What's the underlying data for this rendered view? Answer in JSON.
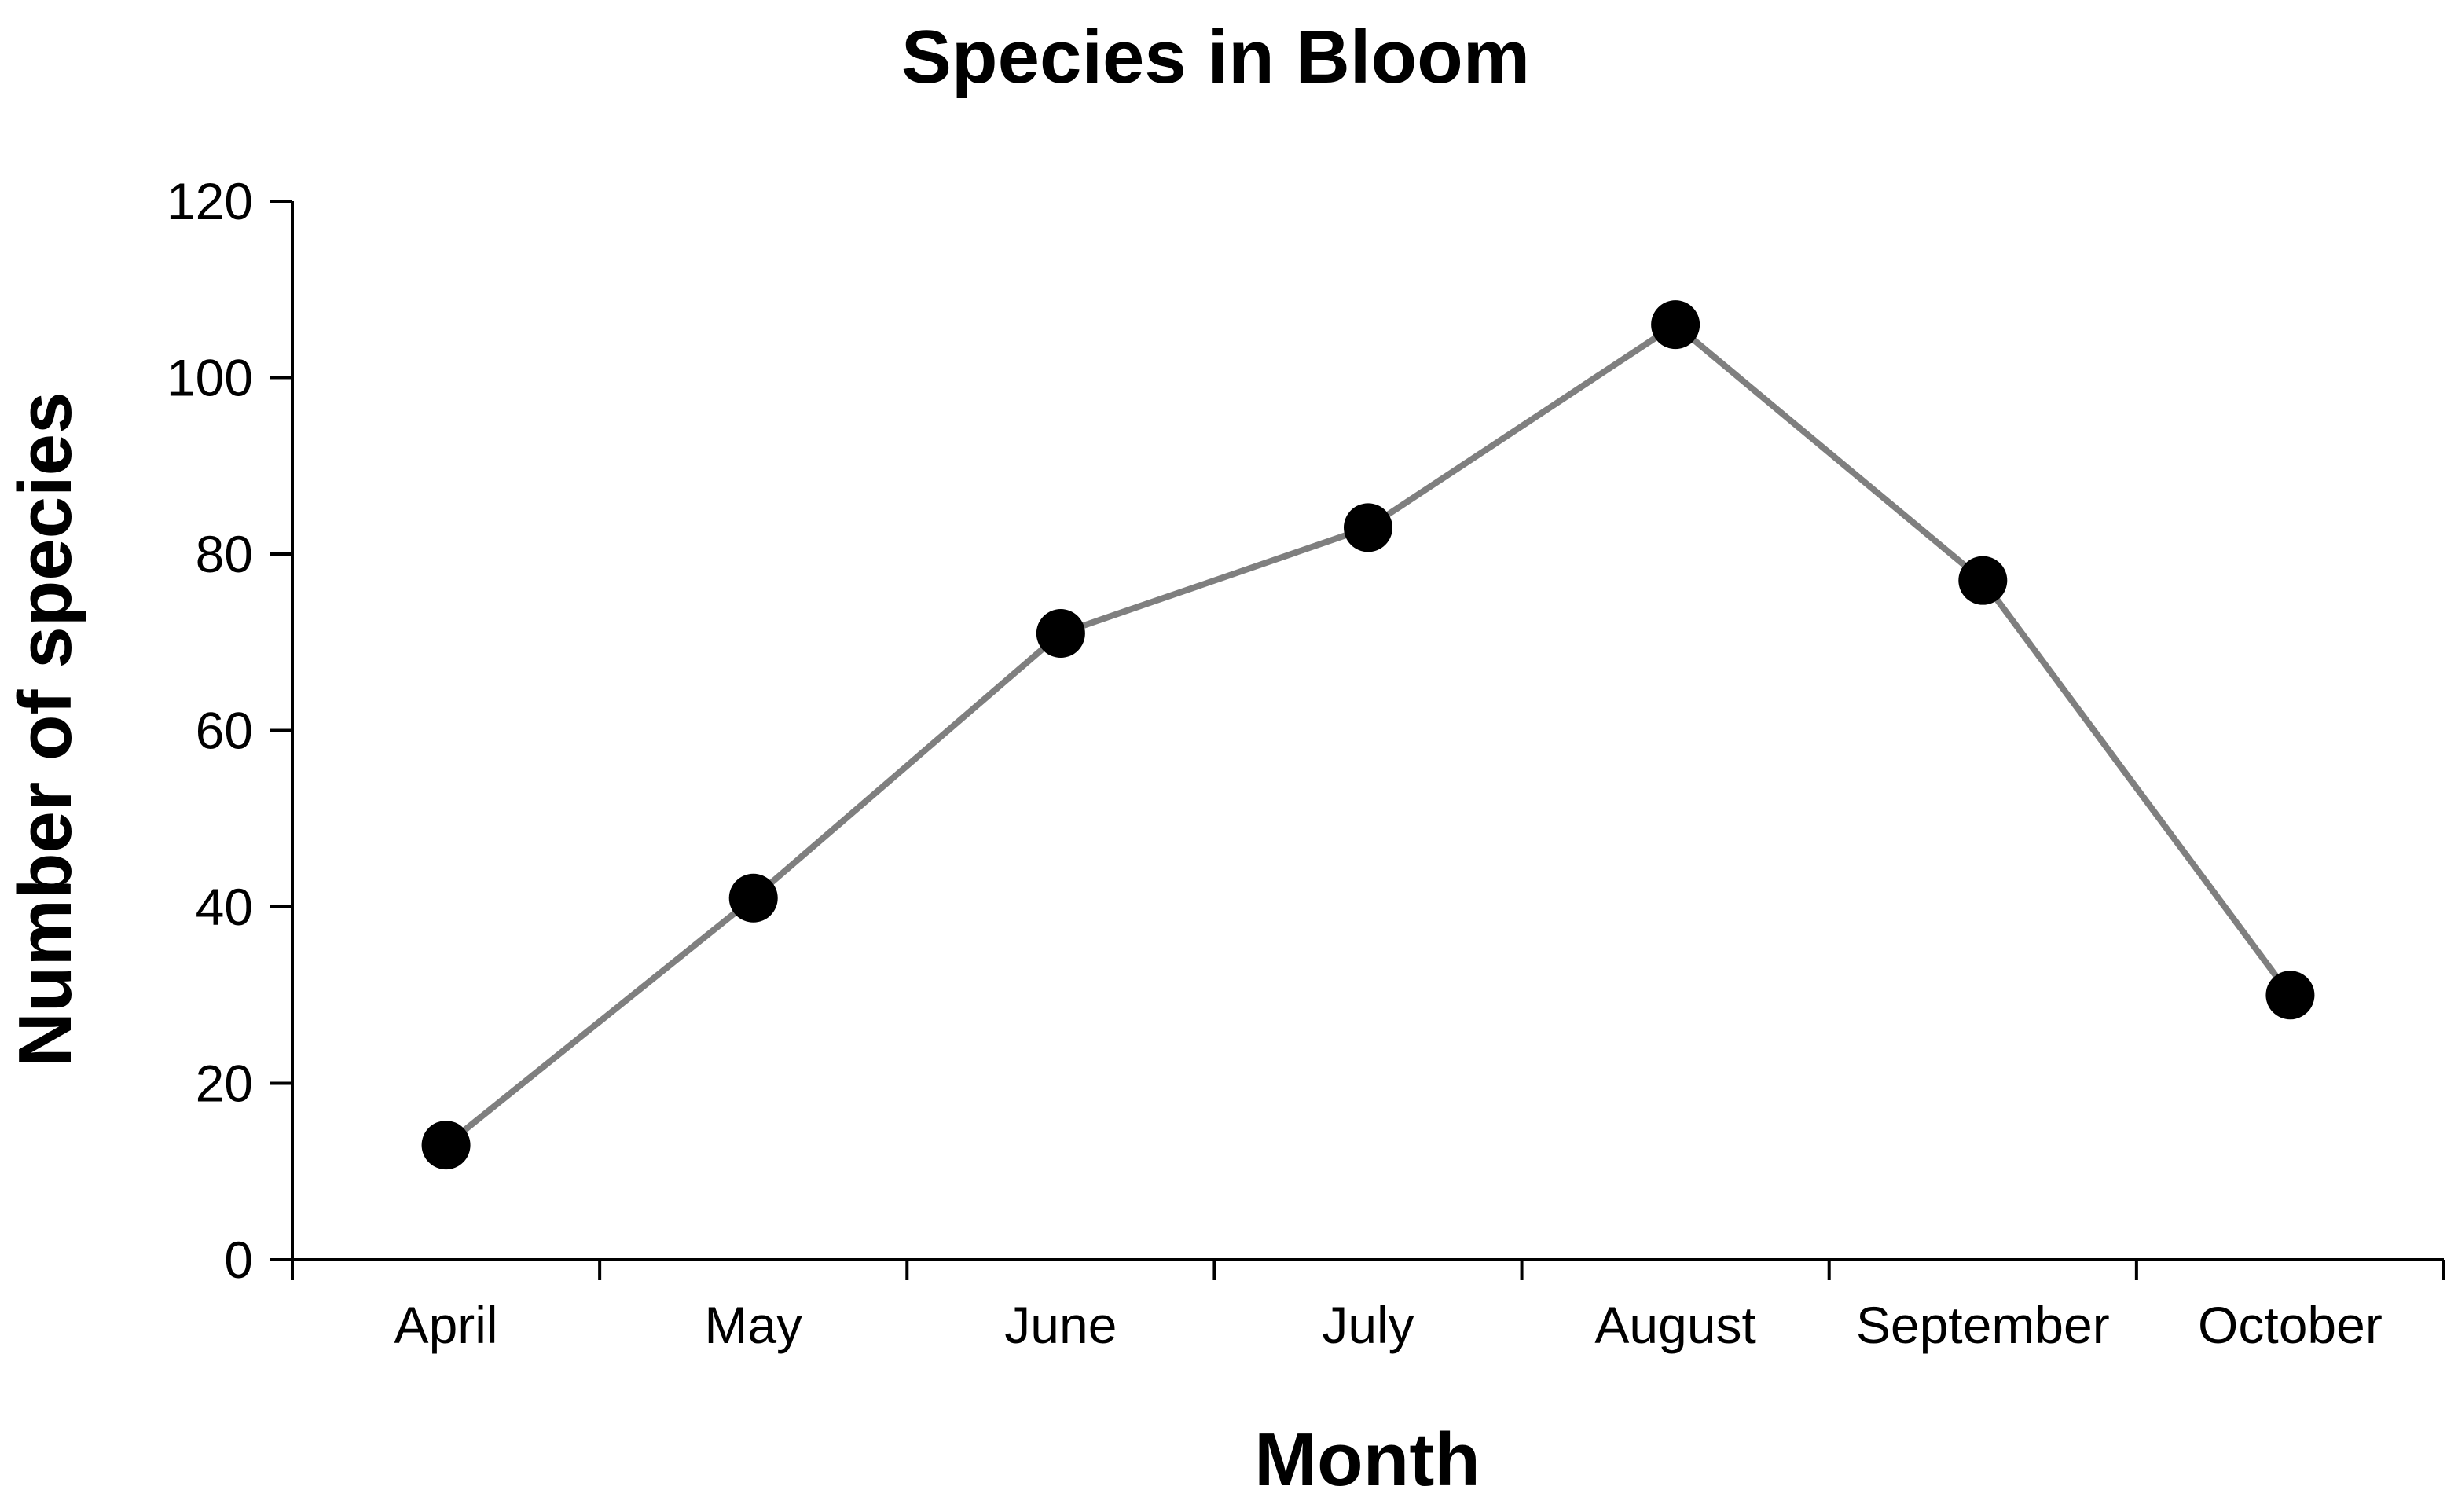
{
  "chart_data": {
    "type": "line",
    "title": "Species in Bloom",
    "xlabel": "Month",
    "ylabel": "Number of species",
    "categories": [
      "April",
      "May",
      "June",
      "July",
      "August",
      "September",
      "October"
    ],
    "series": [
      {
        "values": [
          13,
          41,
          71,
          83,
          106,
          77,
          30
        ]
      }
    ],
    "ylim": [
      0,
      120
    ],
    "yticks": [
      "0",
      "20",
      "40",
      "60",
      "80",
      "100",
      "120"
    ],
    "grid": false,
    "legend": "none",
    "colors": {
      "line": "#7f7f7f",
      "marker": "#000000",
      "axis": "#000000",
      "text": "#000000"
    }
  }
}
